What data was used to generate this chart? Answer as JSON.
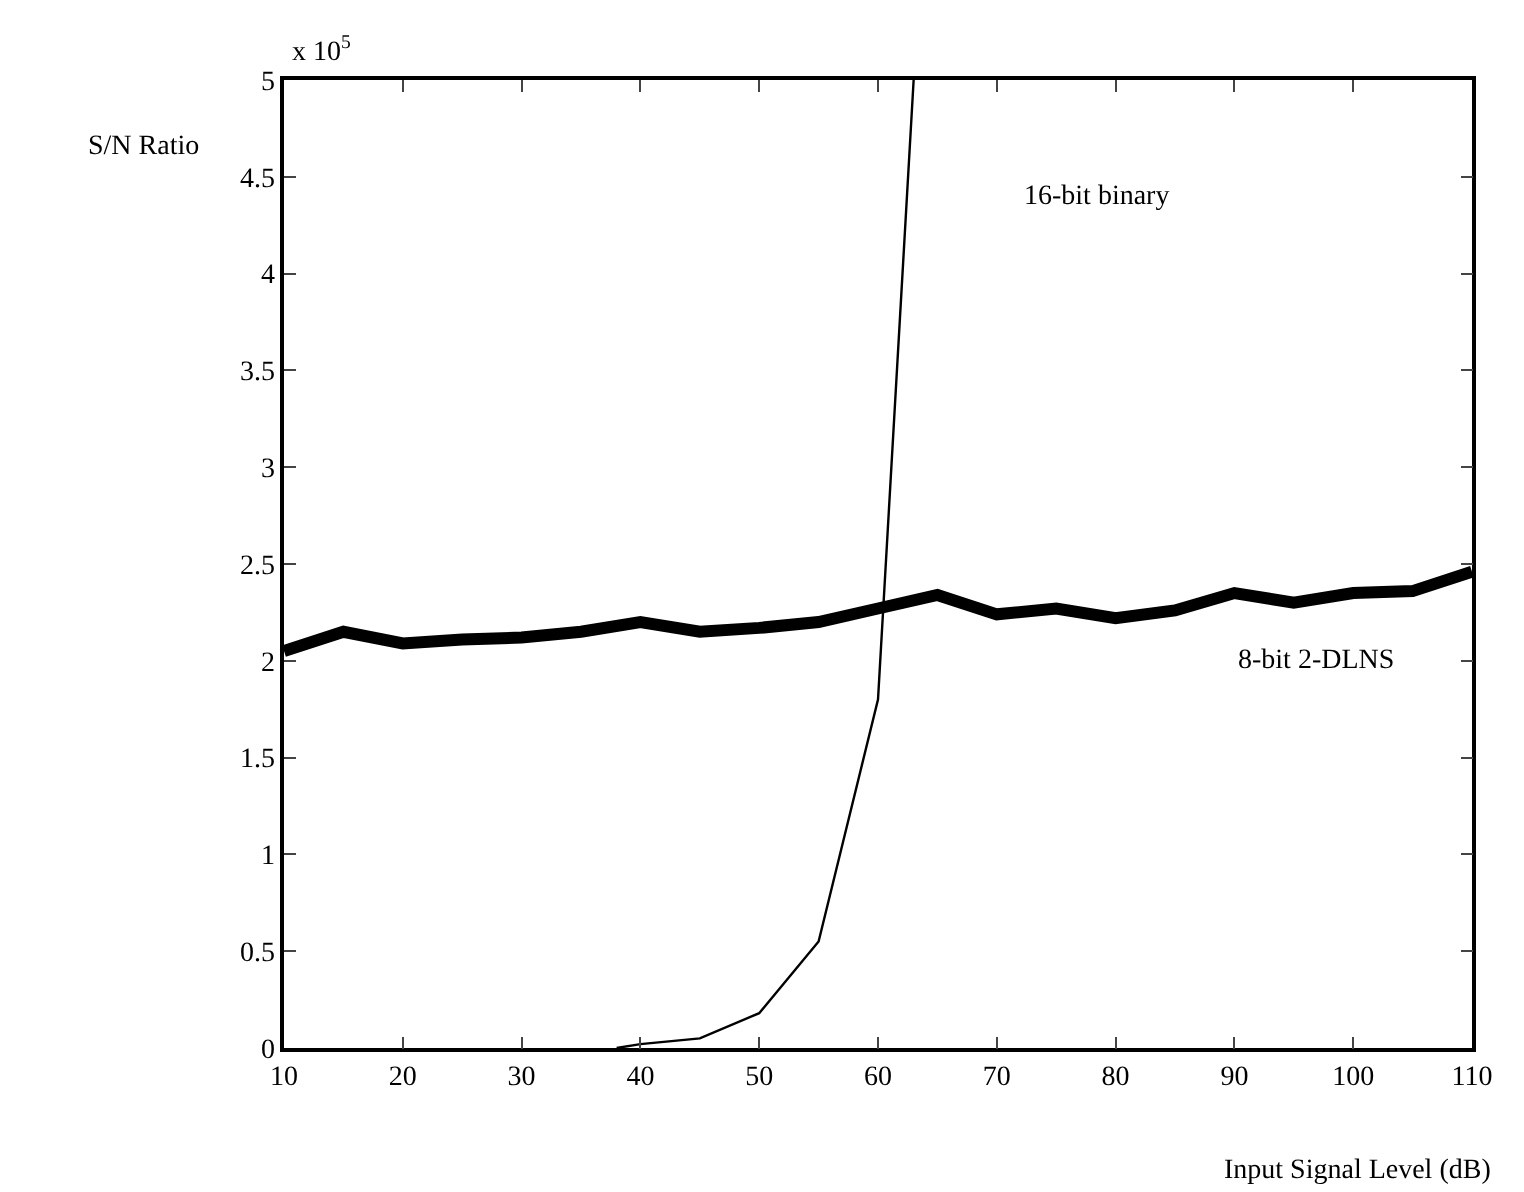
{
  "chart_data": {
    "type": "line",
    "xlabel": "Input Signal Level (dB)",
    "ylabel": "S/N Ratio",
    "xlim": [
      10,
      110
    ],
    "xticks": [
      10,
      20,
      30,
      40,
      50,
      60,
      70,
      80,
      90,
      100,
      110
    ],
    "ylim": [
      0,
      5
    ],
    "yticks": [
      0,
      0.5,
      1,
      1.5,
      2,
      2.5,
      3,
      3.5,
      4,
      4.5,
      5
    ],
    "grid": false,
    "marker": "none",
    "line_style": "solid",
    "series": [
      {
        "color": "#000000",
        "x": [
          10,
          15,
          20,
          25,
          30,
          35,
          40,
          45,
          50,
          55,
          60,
          65,
          70,
          75,
          80,
          85,
          90,
          95,
          100,
          105,
          110
        ],
        "values": [
          2.05,
          2.15,
          2.09,
          2.11,
          2.12,
          2.15,
          2.2,
          2.15,
          2.17,
          2.2,
          2.27,
          2.34,
          2.24,
          2.27,
          2.22,
          2.26,
          2.35,
          2.3,
          2.35,
          2.36,
          2.46
        ]
      },
      {
        "color": "#000000",
        "x": [
          38,
          40,
          45,
          50,
          55,
          60,
          63
        ],
        "values": [
          0,
          0.02,
          0.05,
          0.18,
          0.55,
          1.8,
          5
        ]
      }
    ],
    "annotations": [
      "x 10$^{5}$",
      "16-bit binary",
      "8-bit 2-DLNS"
    ]
  }
}
